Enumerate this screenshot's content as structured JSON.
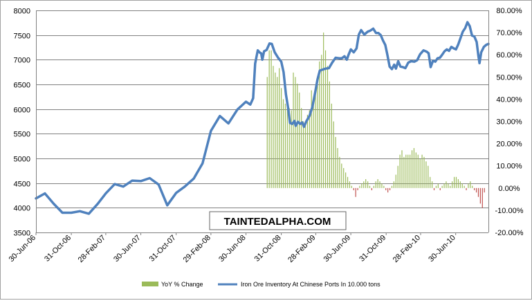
{
  "chart_data": {
    "type": "bar+line",
    "title": "",
    "watermark": "TAINTEDALPHA.COM",
    "x_tick_labels": [
      "30-Jun-06",
      "31-Oct-06",
      "28-Feb-07",
      "30-Jun-07",
      "31-Oct-07",
      "29-Feb-08",
      "30-Jun-08",
      "31-Oct-08",
      "28-Feb-09",
      "30-Jun-09",
      "31-Oct-09",
      "28-Feb-10",
      "30-Jun-10"
    ],
    "x_range": [
      "2006-06-30",
      "2010-10-22"
    ],
    "y_left": {
      "min": 3500,
      "max": 8000,
      "ticks": [
        3500,
        4000,
        4500,
        5000,
        5500,
        6000,
        6500,
        7000,
        7500,
        8000
      ]
    },
    "y_right": {
      "min": -20,
      "max": 80,
      "ticks": [
        -20,
        -10,
        0,
        10,
        20,
        30,
        40,
        50,
        60,
        70,
        80
      ],
      "format": "{v}.00%"
    },
    "grid": "horizontal",
    "legend_position": "bottom",
    "colors": {
      "line": "#4f81bd",
      "bar_positive": "#9bbb59",
      "bar_negative": "#c0504d",
      "grid": "#808080"
    },
    "series": [
      {
        "name": "YoY % Change",
        "type": "bar",
        "axis": "right",
        "points": [
          [
            "2008-09-12",
            50
          ],
          [
            "2008-09-19",
            62
          ],
          [
            "2008-09-26",
            62
          ],
          [
            "2008-10-03",
            55
          ],
          [
            "2008-10-10",
            52
          ],
          [
            "2008-10-17",
            50
          ],
          [
            "2008-10-24",
            54
          ],
          [
            "2008-10-31",
            45
          ],
          [
            "2008-11-07",
            40
          ],
          [
            "2008-11-14",
            38
          ],
          [
            "2008-11-21",
            37
          ],
          [
            "2008-11-28",
            36
          ],
          [
            "2008-12-05",
            35
          ],
          [
            "2008-12-12",
            52
          ],
          [
            "2008-12-19",
            50
          ],
          [
            "2008-12-26",
            47
          ],
          [
            "2009-01-02",
            43
          ],
          [
            "2009-01-09",
            36
          ],
          [
            "2009-01-16",
            30
          ],
          [
            "2009-01-23",
            30
          ],
          [
            "2009-01-30",
            33
          ],
          [
            "2009-02-06",
            35
          ],
          [
            "2009-02-13",
            44
          ],
          [
            "2009-02-20",
            40
          ],
          [
            "2009-02-27",
            45
          ],
          [
            "2009-03-06",
            50
          ],
          [
            "2009-03-13",
            57
          ],
          [
            "2009-03-20",
            60
          ],
          [
            "2009-03-27",
            70
          ],
          [
            "2009-04-03",
            62
          ],
          [
            "2009-04-10",
            55
          ],
          [
            "2009-04-17",
            48
          ],
          [
            "2009-04-24",
            38
          ],
          [
            "2009-05-01",
            30
          ],
          [
            "2009-05-08",
            23
          ],
          [
            "2009-05-15",
            18
          ],
          [
            "2009-05-22",
            14
          ],
          [
            "2009-05-29",
            11
          ],
          [
            "2009-06-05",
            9
          ],
          [
            "2009-06-12",
            7
          ],
          [
            "2009-06-19",
            5
          ],
          [
            "2009-06-26",
            3
          ],
          [
            "2009-07-03",
            1
          ],
          [
            "2009-07-10",
            -1
          ],
          [
            "2009-07-17",
            -4
          ],
          [
            "2009-07-24",
            -1
          ],
          [
            "2009-07-31",
            1
          ],
          [
            "2009-08-07",
            2
          ],
          [
            "2009-08-14",
            3
          ],
          [
            "2009-08-21",
            4
          ],
          [
            "2009-08-28",
            3
          ],
          [
            "2009-09-04",
            1
          ],
          [
            "2009-09-11",
            -1
          ],
          [
            "2009-09-18",
            1
          ],
          [
            "2009-09-25",
            3
          ],
          [
            "2009-10-02",
            4
          ],
          [
            "2009-10-09",
            3
          ],
          [
            "2009-10-16",
            2
          ],
          [
            "2009-10-23",
            1
          ],
          [
            "2009-10-30",
            -1
          ],
          [
            "2009-11-06",
            -2
          ],
          [
            "2009-11-13",
            -1
          ],
          [
            "2009-11-20",
            1
          ],
          [
            "2009-11-27",
            3
          ],
          [
            "2009-12-04",
            6
          ],
          [
            "2009-12-11",
            10
          ],
          [
            "2009-12-18",
            15
          ],
          [
            "2009-12-25",
            17
          ],
          [
            "2010-01-01",
            14
          ],
          [
            "2010-01-08",
            15
          ],
          [
            "2010-01-15",
            15
          ],
          [
            "2010-01-22",
            15
          ],
          [
            "2010-01-29",
            17
          ],
          [
            "2010-02-05",
            18
          ],
          [
            "2010-02-12",
            16
          ],
          [
            "2010-02-19",
            15
          ],
          [
            "2010-02-26",
            13
          ],
          [
            "2010-03-05",
            15
          ],
          [
            "2010-03-12",
            14
          ],
          [
            "2010-03-19",
            12
          ],
          [
            "2010-03-26",
            10
          ],
          [
            "2010-04-02",
            5
          ],
          [
            "2010-04-09",
            3
          ],
          [
            "2010-04-16",
            -1
          ],
          [
            "2010-04-23",
            1
          ],
          [
            "2010-04-30",
            2
          ],
          [
            "2010-05-07",
            -1
          ],
          [
            "2010-05-14",
            1
          ],
          [
            "2010-05-21",
            2
          ],
          [
            "2010-05-28",
            3
          ],
          [
            "2010-06-04",
            2
          ],
          [
            "2010-06-11",
            1
          ],
          [
            "2010-06-18",
            3
          ],
          [
            "2010-06-25",
            5
          ],
          [
            "2010-07-02",
            5
          ],
          [
            "2010-07-09",
            4
          ],
          [
            "2010-07-16",
            3
          ],
          [
            "2010-07-23",
            2
          ],
          [
            "2010-07-30",
            1
          ],
          [
            "2010-08-06",
            -1
          ],
          [
            "2010-08-13",
            2
          ],
          [
            "2010-08-20",
            3
          ],
          [
            "2010-08-27",
            1
          ],
          [
            "2010-09-03",
            -1
          ],
          [
            "2010-09-10",
            -2
          ],
          [
            "2010-09-17",
            -4
          ],
          [
            "2010-09-24",
            -7
          ],
          [
            "2010-10-01",
            -9
          ],
          [
            "2010-10-08",
            -2
          ]
        ]
      },
      {
        "name": "Iron Ore Inventory At Chinese Ports In 10.000 tons",
        "type": "line",
        "axis": "left",
        "points": [
          [
            "2006-06-30",
            4190
          ],
          [
            "2006-07-31",
            4290
          ],
          [
            "2006-08-31",
            4080
          ],
          [
            "2006-09-30",
            3900
          ],
          [
            "2006-10-31",
            3900
          ],
          [
            "2006-11-30",
            3930
          ],
          [
            "2006-12-31",
            3880
          ],
          [
            "2007-01-31",
            4080
          ],
          [
            "2007-02-28",
            4290
          ],
          [
            "2007-03-31",
            4480
          ],
          [
            "2007-04-30",
            4430
          ],
          [
            "2007-05-31",
            4550
          ],
          [
            "2007-06-30",
            4540
          ],
          [
            "2007-07-31",
            4600
          ],
          [
            "2007-08-31",
            4470
          ],
          [
            "2007-09-30",
            4050
          ],
          [
            "2007-10-31",
            4300
          ],
          [
            "2007-11-30",
            4430
          ],
          [
            "2007-12-31",
            4590
          ],
          [
            "2008-01-31",
            4900
          ],
          [
            "2008-02-29",
            5560
          ],
          [
            "2008-03-31",
            5860
          ],
          [
            "2008-04-30",
            5710
          ],
          [
            "2008-05-31",
            5990
          ],
          [
            "2008-06-30",
            6150
          ],
          [
            "2008-07-15",
            6090
          ],
          [
            "2008-07-25",
            6220
          ],
          [
            "2008-08-01",
            6920
          ],
          [
            "2008-08-10",
            7190
          ],
          [
            "2008-08-18",
            7140
          ],
          [
            "2008-08-22",
            7130
          ],
          [
            "2008-08-26",
            7000
          ],
          [
            "2008-09-01",
            7170
          ],
          [
            "2008-09-10",
            7200
          ],
          [
            "2008-09-20",
            7330
          ],
          [
            "2008-09-28",
            7320
          ],
          [
            "2008-10-08",
            7150
          ],
          [
            "2008-10-20",
            7040
          ],
          [
            "2008-10-31",
            6960
          ],
          [
            "2008-11-08",
            6750
          ],
          [
            "2008-11-16",
            6300
          ],
          [
            "2008-11-24",
            6010
          ],
          [
            "2008-11-30",
            5720
          ],
          [
            "2008-12-08",
            5700
          ],
          [
            "2008-12-16",
            5760
          ],
          [
            "2008-12-20",
            5660
          ],
          [
            "2008-12-28",
            5740
          ],
          [
            "2009-01-05",
            5700
          ],
          [
            "2009-01-12",
            5730
          ],
          [
            "2009-01-18",
            5640
          ],
          [
            "2009-01-26",
            5750
          ],
          [
            "2009-02-06",
            5860
          ],
          [
            "2009-02-16",
            6040
          ],
          [
            "2009-02-26",
            6340
          ],
          [
            "2009-03-06",
            6600
          ],
          [
            "2009-03-14",
            6780
          ],
          [
            "2009-03-24",
            6800
          ],
          [
            "2009-04-03",
            6820
          ],
          [
            "2009-04-15",
            6830
          ],
          [
            "2009-04-26",
            6940
          ],
          [
            "2009-05-08",
            7040
          ],
          [
            "2009-05-20",
            7030
          ],
          [
            "2009-05-30",
            7030
          ],
          [
            "2009-06-08",
            7070
          ],
          [
            "2009-06-16",
            7000
          ],
          [
            "2009-06-22",
            7100
          ],
          [
            "2009-06-30",
            7210
          ],
          [
            "2009-07-10",
            7150
          ],
          [
            "2009-07-20",
            7230
          ],
          [
            "2009-07-28",
            7510
          ],
          [
            "2009-08-05",
            7600
          ],
          [
            "2009-08-16",
            7510
          ],
          [
            "2009-08-28",
            7570
          ],
          [
            "2009-09-06",
            7590
          ],
          [
            "2009-09-16",
            7630
          ],
          [
            "2009-09-26",
            7540
          ],
          [
            "2009-10-04",
            7540
          ],
          [
            "2009-10-12",
            7500
          ],
          [
            "2009-10-20",
            7390
          ],
          [
            "2009-10-28",
            7300
          ],
          [
            "2009-11-04",
            7110
          ],
          [
            "2009-11-12",
            6860
          ],
          [
            "2009-11-20",
            6810
          ],
          [
            "2009-11-28",
            6900
          ],
          [
            "2009-12-04",
            6820
          ],
          [
            "2009-12-12",
            6970
          ],
          [
            "2009-12-20",
            6860
          ],
          [
            "2009-12-28",
            6850
          ],
          [
            "2010-01-06",
            6830
          ],
          [
            "2010-01-16",
            6940
          ],
          [
            "2010-01-26",
            6970
          ],
          [
            "2010-02-06",
            6960
          ],
          [
            "2010-02-16",
            6990
          ],
          [
            "2010-02-26",
            7110
          ],
          [
            "2010-03-10",
            7190
          ],
          [
            "2010-03-22",
            7160
          ],
          [
            "2010-03-28",
            7130
          ],
          [
            "2010-04-04",
            6850
          ],
          [
            "2010-04-12",
            6980
          ],
          [
            "2010-04-20",
            6960
          ],
          [
            "2010-04-28",
            7030
          ],
          [
            "2010-05-06",
            7040
          ],
          [
            "2010-05-14",
            7100
          ],
          [
            "2010-05-22",
            7170
          ],
          [
            "2010-05-30",
            7210
          ],
          [
            "2010-06-07",
            7180
          ],
          [
            "2010-06-15",
            7260
          ],
          [
            "2010-06-23",
            7230
          ],
          [
            "2010-07-01",
            7210
          ],
          [
            "2010-07-09",
            7310
          ],
          [
            "2010-07-17",
            7440
          ],
          [
            "2010-07-25",
            7570
          ],
          [
            "2010-08-02",
            7640
          ],
          [
            "2010-08-10",
            7760
          ],
          [
            "2010-08-18",
            7680
          ],
          [
            "2010-08-26",
            7490
          ],
          [
            "2010-09-03",
            7470
          ],
          [
            "2010-09-11",
            7360
          ],
          [
            "2010-09-17",
            7080
          ],
          [
            "2010-09-21",
            6930
          ],
          [
            "2010-09-27",
            7150
          ],
          [
            "2010-10-06",
            7260
          ],
          [
            "2010-10-14",
            7300
          ],
          [
            "2010-10-22",
            7320
          ]
        ]
      }
    ]
  }
}
